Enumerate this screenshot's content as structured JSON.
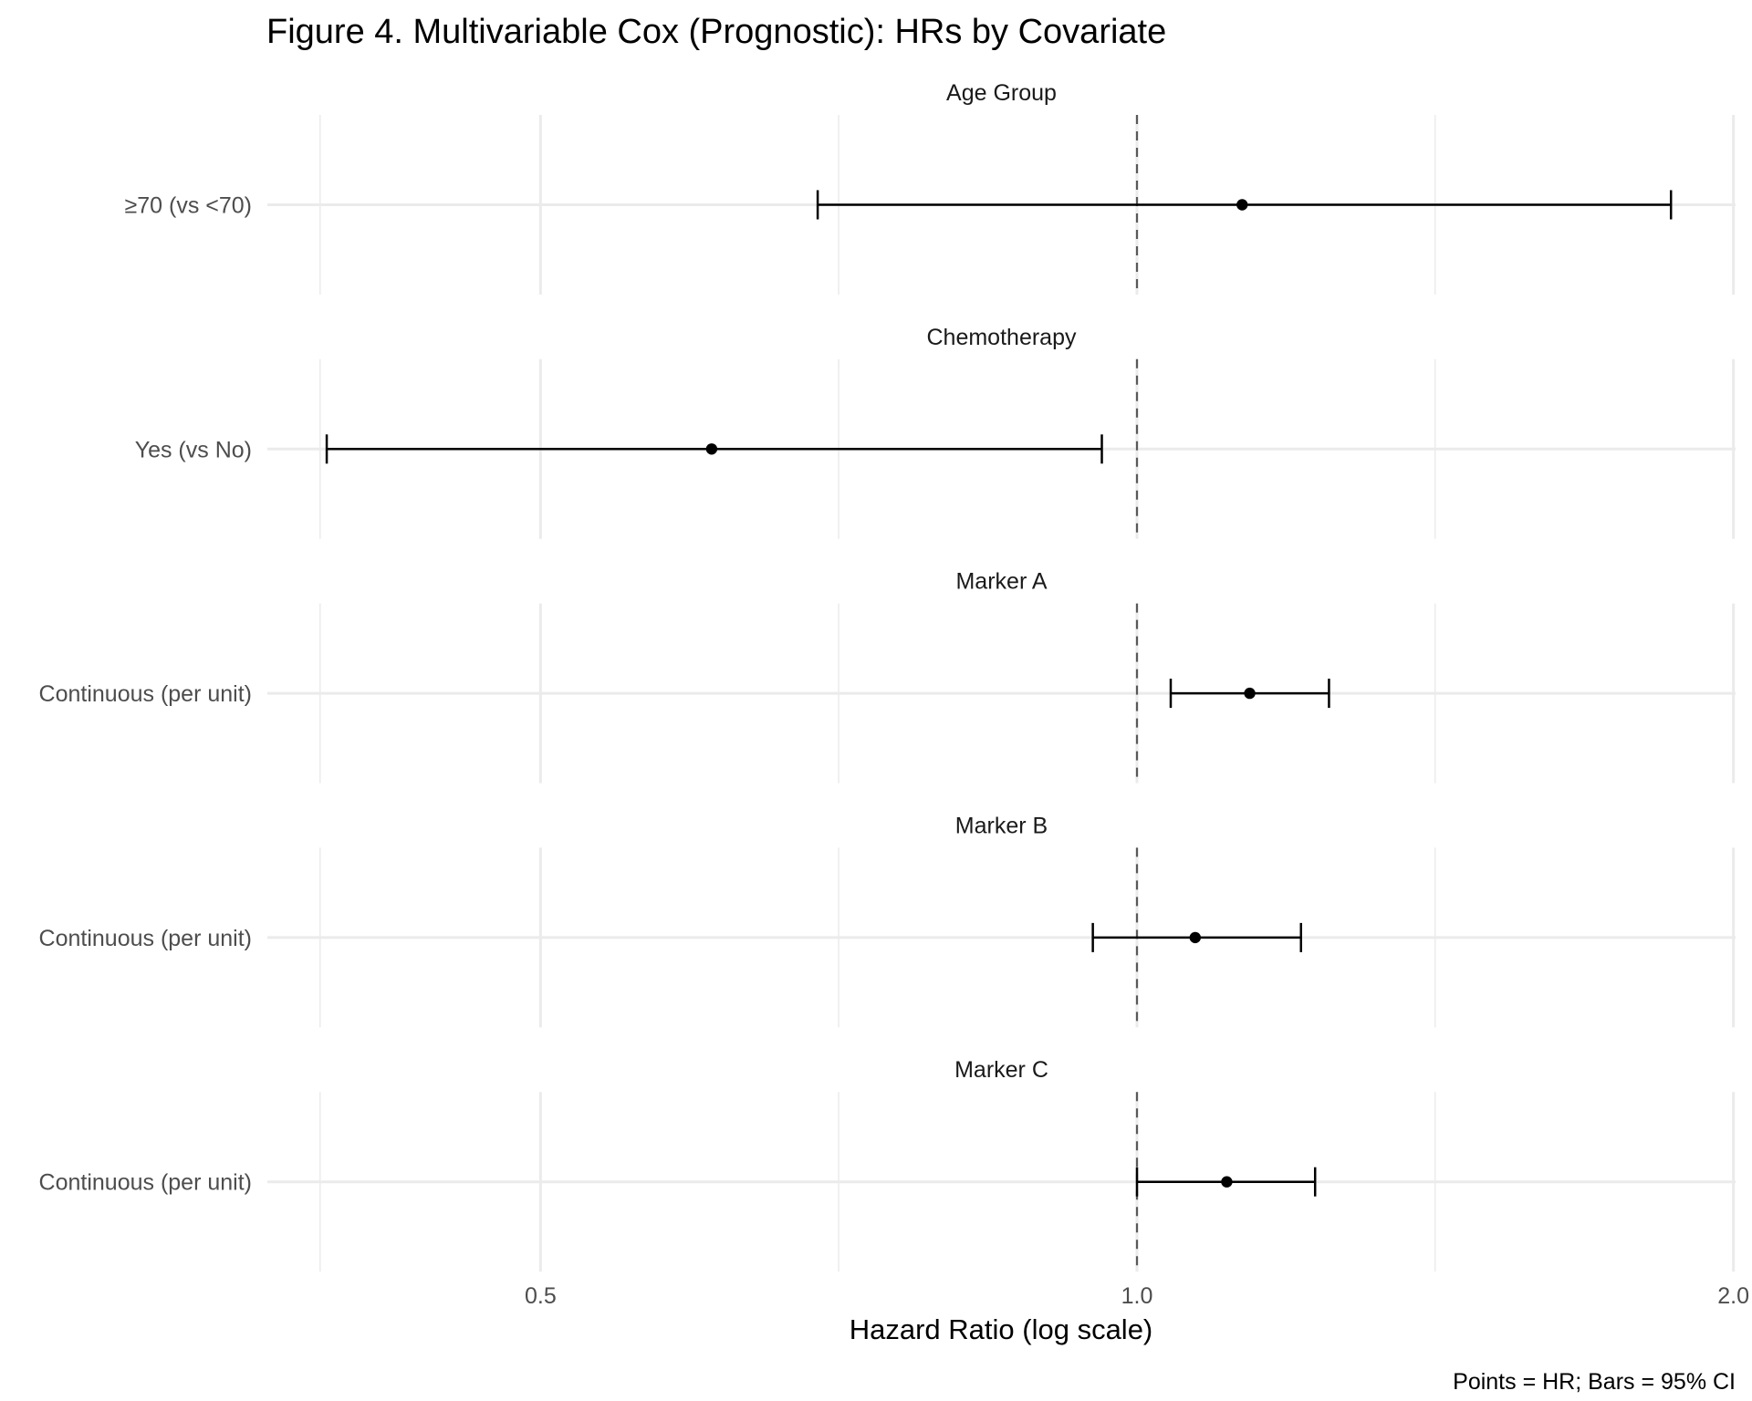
{
  "chart_data": {
    "type": "forest",
    "title": "Figure 4. Multivariable Cox (Prognostic): HRs by Covariate",
    "xlabel": "Hazard Ratio (log scale)",
    "ylabel": "",
    "caption": "Points = HR; Bars = 95% CI",
    "x_scale": "log",
    "xlim": [
      0.364,
      2.005
    ],
    "x_ticks": [
      0.5,
      1.0,
      2.0
    ],
    "x_tick_labels": [
      "0.5",
      "1.0",
      "2.0"
    ],
    "x_minor_gridlines": [
      0.387,
      0.707,
      1.414
    ],
    "reference_line": 1.0,
    "grid": true,
    "facets": [
      {
        "strip": "Age Group",
        "label": "≥70 (vs <70)",
        "hr": 1.13,
        "lower": 0.69,
        "upper": 1.86
      },
      {
        "strip": "Chemotherapy",
        "label": "Yes (vs No)",
        "hr": 0.61,
        "lower": 0.39,
        "upper": 0.96
      },
      {
        "strip": "Marker A",
        "label": "Continuous (per unit)",
        "hr": 1.14,
        "lower": 1.04,
        "upper": 1.25
      },
      {
        "strip": "Marker B",
        "label": "Continuous (per unit)",
        "hr": 1.07,
        "lower": 0.95,
        "upper": 1.21
      },
      {
        "strip": "Marker C",
        "label": "Continuous (per unit)",
        "hr": 1.11,
        "lower": 1.0,
        "upper": 1.23
      }
    ],
    "colors": {
      "point": "#000000",
      "errorbar": "#000000",
      "reference_line": "#595959",
      "grid": "#ebebeb"
    }
  }
}
